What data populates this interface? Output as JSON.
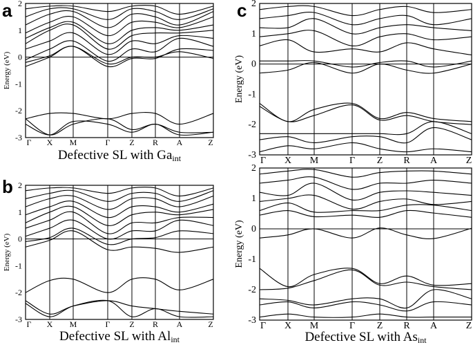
{
  "chart_data": [
    {
      "id": "a",
      "panel_label": "a",
      "type": "line",
      "ylabel": "Energy (eV)",
      "xlabel_main": "Defective SL with Ga",
      "xlabel_sub": "int",
      "kpoints": [
        "Γ",
        "X",
        "M",
        "Γ",
        "Z",
        "R",
        "A",
        "Z"
      ],
      "ylim": [
        -3,
        2
      ],
      "yticks": [
        -3,
        -2,
        -1,
        0,
        1,
        2
      ],
      "fermi_level": 0,
      "bands": [
        [
          -2.3,
          -2.1,
          -2.1,
          -2.3,
          -2.1,
          -2.1,
          -2.5,
          -2.1
        ],
        [
          -2.3,
          -2.9,
          -2.5,
          -2.3,
          -2.7,
          -2.5,
          -2.8,
          -2.8
        ],
        [
          -2.5,
          -2.9,
          -2.4,
          -2.5,
          -2.8,
          -2.5,
          -2.9,
          -2.8
        ],
        [
          -0.35,
          0.0,
          0.4,
          -0.35,
          -0.05,
          -0.05,
          0.3,
          0.25
        ],
        [
          -0.2,
          0.05,
          0.4,
          -0.25,
          0.0,
          0.0,
          0.2,
          -0.05
        ],
        [
          -0.1,
          0.3,
          0.6,
          -0.15,
          0.3,
          0.2,
          0.7,
          0.4
        ],
        [
          0.3,
          0.6,
          0.9,
          0.1,
          0.6,
          0.5,
          0.8,
          0.7
        ],
        [
          0.5,
          1.0,
          1.2,
          0.3,
          0.8,
          0.9,
          0.9,
          1.0
        ],
        [
          0.7,
          1.1,
          1.3,
          0.5,
          1.0,
          1.1,
          1.0,
          1.2
        ],
        [
          0.9,
          1.3,
          1.5,
          0.8,
          1.3,
          1.3,
          1.1,
          1.5
        ],
        [
          1.2,
          1.6,
          1.7,
          1.1,
          1.6,
          1.5,
          1.2,
          1.7
        ],
        [
          1.5,
          1.8,
          1.8,
          1.4,
          1.8,
          1.7,
          1.4,
          1.8
        ],
        [
          1.8,
          1.9,
          1.9,
          1.7,
          1.9,
          1.9,
          1.6,
          1.9
        ]
      ]
    },
    {
      "id": "b",
      "panel_label": "b",
      "type": "line",
      "ylabel": "Energy (eV)",
      "xlabel_main": "Defective SL with Al",
      "xlabel_sub": "int",
      "kpoints": [
        "Γ",
        "X",
        "M",
        "Γ",
        "Z",
        "R",
        "A",
        "Z"
      ],
      "ylim": [
        -3,
        2
      ],
      "yticks": [
        -3,
        -2,
        -1,
        0,
        1,
        2
      ],
      "fermi_level": 0,
      "bands": [
        [
          -2.0,
          -1.55,
          -1.5,
          -2.0,
          -1.5,
          -1.5,
          -1.9,
          -1.5
        ],
        [
          -2.3,
          -2.8,
          -2.5,
          -2.3,
          -2.5,
          -2.6,
          -2.7,
          -2.8
        ],
        [
          -2.4,
          -2.9,
          -2.5,
          -2.3,
          -2.9,
          -2.6,
          -2.9,
          -2.9
        ],
        [
          -0.3,
          -0.05,
          0.3,
          -0.4,
          -0.3,
          -0.35,
          -0.5,
          -0.3
        ],
        [
          -0.1,
          0.05,
          0.4,
          -0.2,
          0.0,
          0.05,
          0.3,
          0.2
        ],
        [
          0.1,
          0.4,
          0.7,
          0.0,
          0.3,
          0.3,
          0.7,
          0.5
        ],
        [
          0.4,
          0.7,
          1.0,
          0.2,
          0.6,
          0.6,
          0.8,
          0.8
        ],
        [
          0.6,
          1.0,
          1.2,
          0.5,
          0.9,
          1.0,
          0.9,
          1.1
        ],
        [
          0.9,
          1.2,
          1.4,
          0.8,
          1.2,
          1.2,
          1.0,
          1.3
        ],
        [
          1.2,
          1.5,
          1.6,
          1.1,
          1.5,
          1.5,
          1.2,
          1.6
        ],
        [
          1.5,
          1.7,
          1.8,
          1.4,
          1.7,
          1.7,
          1.4,
          1.8
        ],
        [
          1.8,
          1.9,
          1.9,
          1.7,
          1.9,
          1.9,
          1.6,
          1.9
        ]
      ]
    },
    {
      "id": "c-top",
      "panel_label": "c",
      "type": "line",
      "ylabel": "Energy (eV)",
      "kpoints": [
        "Γ",
        "X",
        "M",
        "Γ",
        "Z",
        "R",
        "A",
        "Z"
      ],
      "ylim": [
        -3,
        2
      ],
      "yticks": [
        -3,
        -2,
        -1,
        0,
        1,
        2
      ],
      "fermi_level": 0,
      "bands": [
        [
          -2.9,
          -2.7,
          -2.8,
          -2.6,
          -2.8,
          -2.9,
          -2.8,
          -2.9
        ],
        [
          -2.5,
          -2.4,
          -2.6,
          -2.4,
          -2.4,
          -2.6,
          -2.1,
          -2.5
        ],
        [
          -2.3,
          -2.3,
          -2.3,
          -2.3,
          -2.3,
          -2.3,
          -1.9,
          -2.3
        ],
        [
          -1.3,
          -1.9,
          -1.5,
          -1.3,
          -1.8,
          -1.6,
          -1.8,
          -1.9
        ],
        [
          -1.4,
          -1.9,
          -1.7,
          -1.35,
          -1.85,
          -1.7,
          -1.9,
          -2.0
        ],
        [
          -0.3,
          -0.2,
          0.05,
          -0.3,
          0.0,
          -0.2,
          -0.3,
          0.0
        ],
        [
          0.1,
          0.1,
          0.1,
          -0.1,
          0.05,
          0.1,
          -0.1,
          0.1
        ],
        [
          0.6,
          0.8,
          0.4,
          0.5,
          0.4,
          0.7,
          0.5,
          0.3
        ],
        [
          0.9,
          1.0,
          1.1,
          0.6,
          0.9,
          1.0,
          0.8,
          0.9
        ],
        [
          1.2,
          1.2,
          1.5,
          1.0,
          1.2,
          1.3,
          1.2,
          1.1
        ],
        [
          1.5,
          1.6,
          1.7,
          1.3,
          1.5,
          1.6,
          1.3,
          1.5
        ],
        [
          1.8,
          1.9,
          1.9,
          1.6,
          1.8,
          1.9,
          1.7,
          1.8
        ]
      ]
    },
    {
      "id": "c-bottom",
      "panel_label": "",
      "type": "line",
      "ylabel": "Energy (eV)",
      "xlabel_main": "Defective SL with As",
      "xlabel_sub": "int",
      "kpoints": [
        "Γ",
        "X",
        "M",
        "Γ",
        "Z",
        "R",
        "A",
        "Z"
      ],
      "ylim": [
        -3,
        2
      ],
      "yticks": [
        -3,
        -2,
        -1,
        0,
        1,
        2
      ],
      "fermi_level": 0,
      "bands": [
        [
          -2.9,
          -2.8,
          -2.9,
          -2.9,
          -2.8,
          -2.9,
          -2.9,
          -2.9
        ],
        [
          -2.5,
          -2.4,
          -2.6,
          -2.4,
          -2.5,
          -2.7,
          -2.4,
          -2.5
        ],
        [
          -2.3,
          -2.35,
          -2.5,
          -2.3,
          -2.3,
          -2.6,
          -2.0,
          -2.3
        ],
        [
          -1.3,
          -1.9,
          -1.5,
          -1.3,
          -1.8,
          -1.55,
          -1.85,
          -1.8
        ],
        [
          -2.0,
          -1.95,
          -1.7,
          -1.35,
          -1.85,
          -1.75,
          -1.9,
          -2.0
        ],
        [
          -0.3,
          -0.2,
          0.0,
          -0.3,
          0.03,
          -0.2,
          -0.32,
          0.02
        ],
        [
          0.45,
          0.6,
          0.4,
          0.45,
          0.38,
          0.6,
          0.52,
          0.38
        ],
        [
          0.6,
          0.85,
          0.55,
          0.6,
          0.6,
          0.78,
          0.78,
          0.6
        ],
        [
          0.9,
          1.0,
          1.1,
          0.65,
          0.9,
          0.98,
          0.8,
          0.9
        ],
        [
          1.2,
          1.1,
          1.5,
          0.95,
          1.2,
          1.25,
          1.2,
          1.1
        ],
        [
          1.5,
          1.6,
          1.7,
          1.3,
          1.5,
          1.5,
          1.6,
          1.5
        ],
        [
          1.8,
          1.9,
          1.95,
          1.7,
          1.85,
          1.9,
          1.9,
          1.8
        ]
      ]
    }
  ]
}
